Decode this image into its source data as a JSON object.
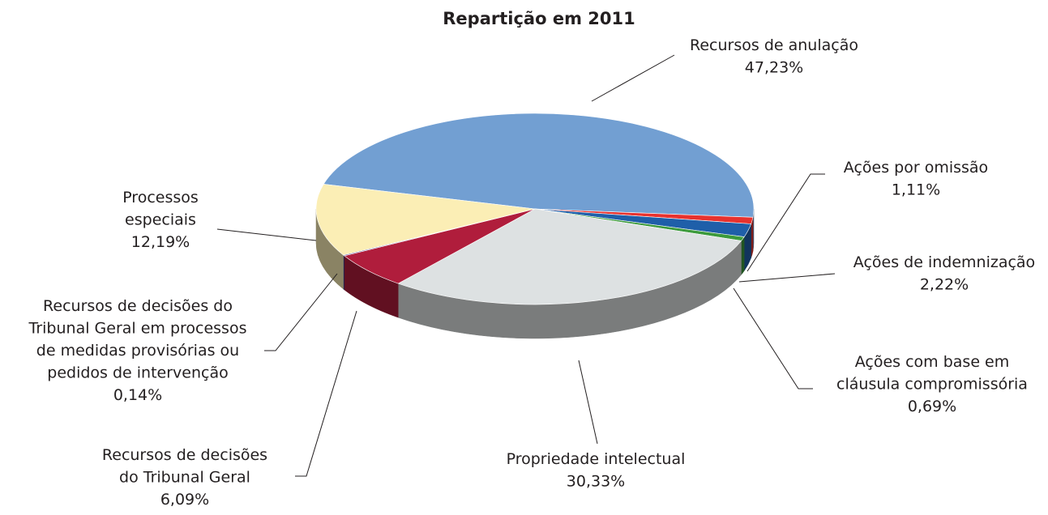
{
  "chart_data": {
    "type": "pie",
    "title": "Repartição em 2011",
    "categories": [
      "Recursos de anulação",
      "Ações por omissão",
      "Ações de indemnização",
      "Ações com base em cláusula compromissória",
      "Propriedade intelectual",
      "Recursos de decisões do Tribunal Geral",
      "Recursos de decisões do Tribunal Geral em processos de medidas provisórias ou pedidos de intervenção",
      "Processos especiais"
    ],
    "values": [
      47.23,
      1.11,
      2.22,
      0.69,
      30.33,
      6.09,
      0.14,
      12.19
    ],
    "value_labels": [
      "47,23%",
      "1,11%",
      "2,22%",
      "0,69%",
      "30,33%",
      "6,09%",
      "0,14%",
      "12,19%"
    ],
    "colors": [
      "#729fd2",
      "#e8322e",
      "#1f5fa9",
      "#3c9a3c",
      "#dde1e2",
      "#b01d3c",
      "#4b3f8f",
      "#fbeeb5"
    ]
  }
}
